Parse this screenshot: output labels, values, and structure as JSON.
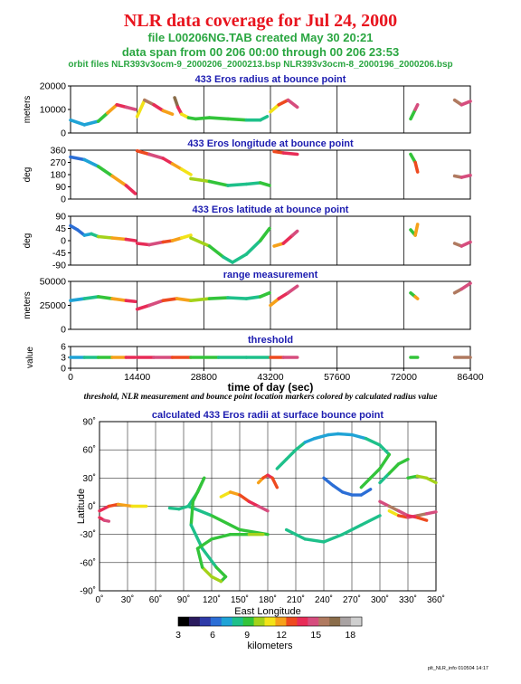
{
  "header": {
    "title": "NLR data coverage for Jul 24, 2000",
    "file_line": "file L00206NG.TAB created May 30 20:21",
    "span_line": "data span from 00 206 00:00 through 00 206 23:53",
    "orbit_line": "orbit files NLR393v3ocm-9_2000206_2000213.bsp NLR393v3ocm-8_2000196_2000206.bsp"
  },
  "caption": "threshold, NLR measurement and bounce point location markers colored by calculated radius value",
  "footer": "plt_NLR_info 010504 14:17",
  "colors": {
    "title": "#e8141e",
    "subtitle": "#2aa641",
    "panel_title": "#1c1cb0",
    "colormap": [
      "#000000",
      "#2a1a5e",
      "#2e3aa8",
      "#2b6ed6",
      "#1fa3d6",
      "#1ec08a",
      "#33c43a",
      "#a4d21a",
      "#f3e318",
      "#f6a11a",
      "#ee4a1f",
      "#e82c57",
      "#d64d7e",
      "#b07a60",
      "#8a6d4a",
      "#a9a3a3",
      "#cfcfcf"
    ]
  },
  "chart_data": [
    {
      "type": "scatter",
      "title": "433 Eros radius at bounce point",
      "ylabel": "meters",
      "ylim": [
        0,
        20000
      ],
      "yticks": [
        "0",
        "10000",
        "20000"
      ],
      "segments": [
        {
          "x": [
            0,
            3000,
            6000,
            8000,
            10000,
            12000,
            14000
          ],
          "y": [
            5500,
            3500,
            5000,
            8500,
            12000,
            11000,
            10000
          ],
          "c": [
            4,
            4,
            6,
            9,
            11,
            12,
            10
          ]
        },
        {
          "x": [
            14400,
            16000,
            18000,
            20000,
            22000
          ],
          "y": [
            7000,
            14000,
            12000,
            9500,
            8000
          ],
          "c": [
            8,
            13,
            11,
            9,
            8
          ]
        },
        {
          "x": [
            22500,
            23200,
            24000,
            25500,
            27000
          ],
          "y": [
            15000,
            11000,
            8000,
            6500,
            6000
          ],
          "c": [
            14,
            11,
            8,
            6,
            6
          ]
        },
        {
          "x": [
            27000,
            30000,
            34000,
            38000,
            41000,
            42500
          ],
          "y": [
            6000,
            6500,
            6000,
            5500,
            5500,
            7000
          ],
          "c": [
            6,
            6,
            6,
            5,
            5,
            6
          ]
        },
        {
          "x": [
            43200,
            45000,
            47000,
            49000
          ],
          "y": [
            9000,
            12000,
            14000,
            11000
          ],
          "c": [
            8,
            10,
            12,
            9
          ]
        },
        {
          "x": [
            73500,
            74500,
            75000
          ],
          "y": [
            6000,
            10000,
            12000
          ],
          "c": [
            6,
            12,
            10
          ]
        },
        {
          "x": [
            83000,
            84500,
            86400
          ],
          "y": [
            14000,
            12000,
            13500
          ],
          "c": [
            13,
            12,
            13
          ]
        }
      ]
    },
    {
      "type": "scatter",
      "title": "433 Eros longitude at bounce point",
      "ylabel": "deg",
      "ylim": [
        0,
        360
      ],
      "yticks": [
        "0",
        "90",
        "180",
        "270",
        "360"
      ],
      "segments": [
        {
          "x": [
            0,
            3000,
            6000,
            9000,
            12000,
            14000
          ],
          "y": [
            310,
            290,
            240,
            170,
            100,
            40
          ],
          "c": [
            3,
            4,
            6,
            9,
            11,
            10
          ]
        },
        {
          "x": [
            14400,
            17000,
            20000,
            22000,
            24000,
            26000
          ],
          "y": [
            355,
            330,
            300,
            260,
            220,
            180
          ],
          "c": [
            10,
            12,
            11,
            9,
            8,
            8
          ]
        },
        {
          "x": [
            26000,
            30000,
            34000,
            38000,
            41000,
            43000
          ],
          "y": [
            150,
            130,
            100,
            110,
            120,
            100
          ],
          "c": [
            7,
            6,
            5,
            5,
            6,
            6
          ]
        },
        {
          "x": [
            44000,
            46000,
            49000
          ],
          "y": [
            350,
            340,
            330
          ],
          "c": [
            10,
            11,
            12
          ]
        },
        {
          "x": [
            73500,
            74500,
            75000
          ],
          "y": [
            330,
            270,
            200
          ],
          "c": [
            6,
            10,
            11
          ]
        },
        {
          "x": [
            83000,
            84500,
            86400
          ],
          "y": [
            170,
            160,
            175
          ],
          "c": [
            13,
            12,
            13
          ]
        }
      ]
    },
    {
      "type": "scatter",
      "title": "433 Eros latitude at bounce point",
      "ylabel": "deg",
      "ylim": [
        -90,
        90
      ],
      "yticks": [
        "-90",
        "-45",
        "0",
        "45",
        "90"
      ],
      "segments": [
        {
          "x": [
            0,
            1500,
            3000,
            4500,
            6000,
            9000,
            12000,
            14000
          ],
          "y": [
            55,
            40,
            20,
            25,
            15,
            10,
            5,
            0
          ],
          "c": [
            3,
            3,
            4,
            5,
            7,
            9,
            11,
            10
          ]
        },
        {
          "x": [
            14400,
            17000,
            20000,
            22000,
            24000,
            26000
          ],
          "y": [
            -10,
            -15,
            -5,
            0,
            10,
            20
          ],
          "c": [
            11,
            12,
            10,
            9,
            8,
            8
          ]
        },
        {
          "x": [
            26000,
            30000,
            33000,
            35000,
            38000,
            41000,
            43000
          ],
          "y": [
            10,
            -20,
            -60,
            -80,
            -50,
            0,
            45
          ],
          "c": [
            7,
            6,
            5,
            5,
            5,
            6,
            7
          ]
        },
        {
          "x": [
            44000,
            46000,
            48000,
            49000
          ],
          "y": [
            -20,
            -10,
            20,
            35
          ],
          "c": [
            9,
            11,
            12,
            12
          ]
        },
        {
          "x": [
            73500,
            74500,
            75000
          ],
          "y": [
            40,
            20,
            60
          ],
          "c": [
            6,
            9,
            11
          ]
        },
        {
          "x": [
            83000,
            84500,
            86400
          ],
          "y": [
            -10,
            -20,
            -5
          ],
          "c": [
            13,
            12,
            13
          ]
        }
      ]
    },
    {
      "type": "scatter",
      "title": "range measurement",
      "ylabel": "meters",
      "ylim": [
        0,
        50000
      ],
      "yticks": [
        "0",
        "25000",
        "50000"
      ],
      "segments": [
        {
          "x": [
            0,
            3000,
            6000,
            9000,
            12000,
            14000
          ],
          "y": [
            30000,
            32000,
            34000,
            32000,
            30000,
            29000
          ],
          "c": [
            4,
            5,
            6,
            9,
            11,
            10
          ]
        },
        {
          "x": [
            14400,
            17000,
            20000,
            23000,
            26000
          ],
          "y": [
            21000,
            25000,
            30000,
            32000,
            30000
          ],
          "c": [
            11,
            12,
            10,
            9,
            8
          ]
        },
        {
          "x": [
            26000,
            30000,
            34000,
            38000,
            41000,
            43000
          ],
          "y": [
            30000,
            32000,
            33000,
            32000,
            34000,
            38000
          ],
          "c": [
            7,
            6,
            5,
            5,
            6,
            7
          ]
        },
        {
          "x": [
            43200,
            45000,
            47000,
            49000
          ],
          "y": [
            25000,
            32000,
            38000,
            45000
          ],
          "c": [
            9,
            11,
            12,
            12
          ]
        },
        {
          "x": [
            73500,
            74500,
            75000
          ],
          "y": [
            38000,
            34000,
            32000
          ],
          "c": [
            6,
            9,
            11
          ]
        },
        {
          "x": [
            83000,
            84500,
            86400
          ],
          "y": [
            38000,
            42000,
            48000
          ],
          "c": [
            13,
            12,
            13
          ]
        }
      ]
    },
    {
      "type": "scatter",
      "title": "threshold",
      "ylabel": "value",
      "ylim": [
        0,
        6
      ],
      "yticks": [
        "0",
        "3",
        "6"
      ],
      "xlabel": "time of day (sec)",
      "xlim": [
        0,
        86400
      ],
      "xticks": [
        "0",
        "14400",
        "28800",
        "43200",
        "57600",
        "72000",
        "86400"
      ],
      "segments": [
        {
          "x": [
            0,
            3000,
            6000,
            9000,
            12000,
            14000
          ],
          "y": [
            3,
            3,
            3,
            3,
            3,
            3
          ],
          "c": [
            4,
            5,
            6,
            9,
            11,
            10
          ]
        },
        {
          "x": [
            14400,
            18000,
            22000,
            26000
          ],
          "y": [
            3,
            3,
            3,
            3
          ],
          "c": [
            11,
            12,
            10,
            8
          ]
        },
        {
          "x": [
            26000,
            32000,
            38000,
            43000
          ],
          "y": [
            3,
            3,
            3,
            3
          ],
          "c": [
            6,
            5,
            5,
            7
          ]
        },
        {
          "x": [
            43200,
            46000,
            49000
          ],
          "y": [
            3,
            3,
            3
          ],
          "c": [
            10,
            12,
            12
          ]
        },
        {
          "x": [
            73500,
            75000
          ],
          "y": [
            3,
            3
          ],
          "c": [
            6,
            11
          ]
        },
        {
          "x": [
            83000,
            86400
          ],
          "y": [
            3,
            3
          ],
          "c": [
            13,
            13
          ]
        }
      ]
    },
    {
      "type": "scatter",
      "title": "calculated 433 Eros radii at surface bounce point",
      "xlabel": "East Longitude",
      "ylabel": "Latitude",
      "xlim": [
        0,
        360
      ],
      "ylim": [
        -90,
        90
      ],
      "xticks": [
        "0˚",
        "30˚",
        "60˚",
        "90˚",
        "120˚",
        "150˚",
        "180˚",
        "210˚",
        "240˚",
        "270˚",
        "300˚",
        "330˚",
        "360˚"
      ],
      "yticks": [
        "-90˚",
        "-60˚",
        "-30˚",
        "0˚",
        "30˚",
        "60˚",
        "90˚"
      ],
      "segments": [
        {
          "x": [
            0,
            10,
            20,
            35,
            50
          ],
          "y": [
            -5,
            0,
            2,
            0,
            0
          ],
          "c": [
            11,
            10,
            9,
            8,
            7
          ]
        },
        {
          "x": [
            0,
            5,
            10
          ],
          "y": [
            -12,
            -15,
            -16
          ],
          "c": [
            11,
            12,
            12
          ]
        },
        {
          "x": [
            75,
            85,
            95,
            105,
            112
          ],
          "y": [
            -2,
            -3,
            0,
            15,
            30
          ],
          "c": [
            5,
            5,
            5,
            6,
            6
          ]
        },
        {
          "x": [
            95,
            120,
            150,
            180
          ],
          "y": [
            0,
            -10,
            -25,
            -30
          ],
          "c": [
            5,
            6,
            6,
            7
          ]
        },
        {
          "x": [
            112,
            100,
            98,
            110,
            125,
            135,
            130,
            120,
            110,
            105,
            120,
            140,
            160,
            175
          ],
          "y": [
            30,
            5,
            -20,
            -45,
            -65,
            -75,
            -80,
            -75,
            -65,
            -45,
            -35,
            -30,
            -30,
            -30
          ],
          "c": [
            6,
            6,
            5,
            5,
            6,
            6,
            7,
            7,
            6,
            6,
            6,
            6,
            7,
            7
          ]
        },
        {
          "x": [
            130,
            140,
            150,
            160,
            170,
            180
          ],
          "y": [
            10,
            15,
            12,
            5,
            0,
            -5
          ],
          "c": [
            8,
            9,
            10,
            11,
            12,
            11
          ]
        },
        {
          "x": [
            170,
            175,
            180,
            185,
            190
          ],
          "y": [
            25,
            30,
            33,
            30,
            20
          ],
          "c": [
            9,
            10,
            11,
            10,
            9
          ]
        },
        {
          "x": [
            190,
            200,
            210,
            220,
            230,
            245,
            255,
            270,
            285,
            300,
            310,
            300,
            290,
            280
          ],
          "y": [
            40,
            50,
            60,
            68,
            72,
            76,
            77,
            76,
            72,
            65,
            55,
            40,
            30,
            20
          ],
          "c": [
            5,
            5,
            5,
            4,
            4,
            4,
            4,
            4,
            5,
            5,
            6,
            6,
            6,
            7
          ]
        },
        {
          "x": [
            240,
            250,
            260,
            270,
            280,
            290
          ],
          "y": [
            30,
            22,
            15,
            12,
            12,
            18
          ],
          "c": [
            3,
            3,
            3,
            3,
            3,
            3
          ]
        },
        {
          "x": [
            300,
            310,
            320,
            330
          ],
          "y": [
            25,
            35,
            45,
            50
          ],
          "c": [
            5,
            6,
            6,
            5
          ]
        },
        {
          "x": [
            200,
            220,
            240,
            260,
            280,
            300
          ],
          "y": [
            -25,
            -35,
            -38,
            -30,
            -20,
            -10
          ],
          "c": [
            5,
            5,
            5,
            5,
            5,
            6
          ]
        },
        {
          "x": [
            310,
            320,
            330,
            340,
            350,
            360
          ],
          "y": [
            -5,
            -10,
            -12,
            -10,
            -8,
            -6
          ],
          "c": [
            8,
            10,
            12,
            13,
            12,
            11
          ]
        },
        {
          "x": [
            300,
            310,
            320,
            330,
            340,
            350
          ],
          "y": [
            5,
            0,
            -5,
            -10,
            -12,
            -15
          ],
          "c": [
            12,
            13,
            12,
            11,
            10,
            10
          ]
        },
        {
          "x": [
            330,
            340,
            350,
            360
          ],
          "y": [
            30,
            32,
            30,
            25
          ],
          "c": [
            6,
            7,
            7,
            6
          ]
        }
      ]
    }
  ],
  "colorbar": {
    "ticks": [
      "3",
      "6",
      "9",
      "12",
      "15",
      "18"
    ],
    "tick_values": [
      3,
      6,
      9,
      12,
      15,
      18
    ],
    "range": [
      3,
      19
    ],
    "label": "kilometers"
  }
}
